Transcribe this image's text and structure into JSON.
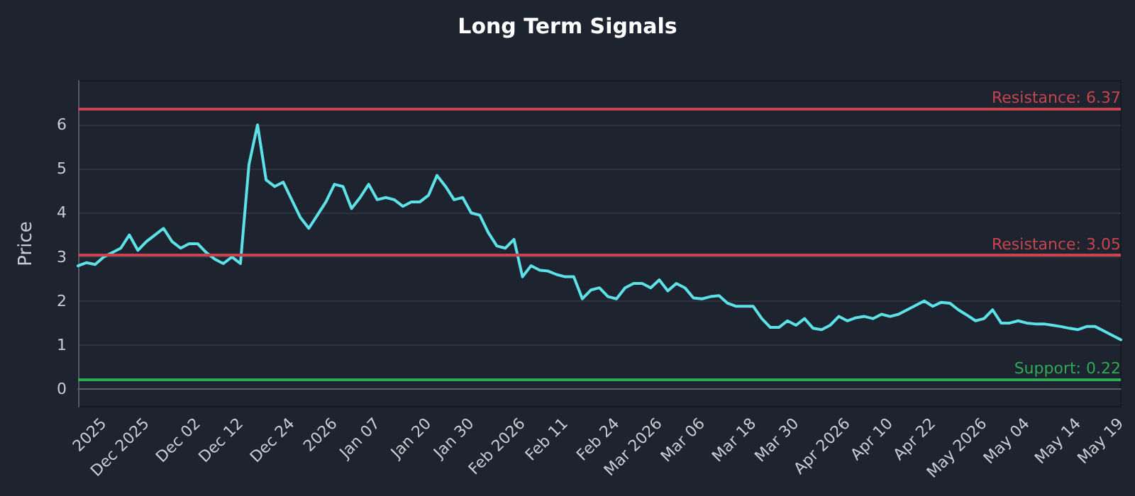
{
  "chart_data": {
    "type": "line",
    "title": "Long Term Signals",
    "ylabel": "Price",
    "categories": [
      null,
      null,
      null,
      "2025",
      null,
      null,
      null,
      null,
      "Dec 2025",
      null,
      null,
      null,
      null,
      null,
      "Dec 02",
      null,
      null,
      null,
      null,
      "Dec 12",
      null,
      null,
      null,
      null,
      null,
      "Dec 24",
      null,
      null,
      null,
      null,
      "2026",
      null,
      null,
      null,
      null,
      "Jan 07",
      null,
      null,
      null,
      null,
      null,
      "Jan 20",
      null,
      null,
      null,
      null,
      "Jan 30",
      null,
      null,
      null,
      null,
      null,
      "Feb 2026",
      null,
      null,
      null,
      null,
      "Feb 11",
      null,
      null,
      null,
      null,
      null,
      "Feb 24",
      null,
      null,
      null,
      null,
      "Mar 2026",
      null,
      null,
      null,
      null,
      "Mar 06",
      null,
      null,
      null,
      null,
      null,
      "Mar 18",
      null,
      null,
      null,
      null,
      "Mar 30",
      null,
      null,
      null,
      null,
      null,
      "Apr 2026",
      null,
      null,
      null,
      null,
      "Apr 10",
      null,
      null,
      null,
      null,
      "Apr 22",
      null,
      null,
      null,
      null,
      null,
      "May 2026",
      null,
      null,
      null,
      null,
      "May 04",
      null,
      null,
      null,
      null,
      null,
      "May 14",
      null,
      null,
      null,
      null,
      "May 19"
    ],
    "series": [
      {
        "color": "#5ce1e6",
        "values": [
          2.8,
          2.87,
          2.83,
          3.0,
          3.1,
          3.2,
          3.5,
          3.15,
          3.35,
          3.5,
          3.65,
          3.35,
          3.2,
          3.3,
          3.3,
          3.1,
          2.95,
          2.85,
          3.0,
          2.85,
          5.1,
          6.0,
          4.75,
          4.6,
          4.7,
          4.3,
          3.9,
          3.65,
          3.95,
          4.25,
          4.65,
          4.6,
          4.1,
          4.35,
          4.65,
          4.3,
          4.35,
          4.3,
          4.15,
          4.25,
          4.25,
          4.4,
          4.85,
          4.6,
          4.3,
          4.35,
          4.0,
          3.95,
          3.55,
          3.25,
          3.2,
          3.4,
          2.55,
          2.8,
          2.7,
          2.68,
          2.6,
          2.55,
          2.55,
          2.05,
          2.25,
          2.3,
          2.1,
          2.05,
          2.3,
          2.4,
          2.4,
          2.3,
          2.48,
          2.23,
          2.4,
          2.3,
          2.07,
          2.05,
          2.1,
          2.12,
          1.95,
          1.88,
          1.88,
          1.88,
          1.6,
          1.4,
          1.4,
          1.55,
          1.45,
          1.6,
          1.38,
          1.35,
          1.45,
          1.65,
          1.55,
          1.62,
          1.65,
          1.6,
          1.7,
          1.65,
          1.7,
          1.8,
          1.9,
          2.0,
          1.88,
          1.97,
          1.95,
          1.8,
          1.68,
          1.55,
          1.6,
          1.8,
          1.5,
          1.5,
          1.55,
          1.5,
          1.48,
          1.48,
          1.45,
          1.42,
          1.38,
          1.35,
          1.42,
          1.42,
          1.32,
          1.22,
          1.12
        ]
      }
    ],
    "ylim": [
      -0.4,
      7
    ],
    "yticks": [
      0,
      1,
      2,
      3,
      4,
      5,
      6
    ],
    "grid": "y",
    "marker": "none",
    "line_style": "solid",
    "ref_lines": [
      {
        "axis": "y",
        "value": 6.37,
        "label": "Resistance: 6.37",
        "color": "#c8444e"
      },
      {
        "axis": "y",
        "value": 3.05,
        "label": "Resistance: 3.05",
        "color": "#c8444e"
      },
      {
        "axis": "y",
        "value": 0.22,
        "label": "Support: 0.22",
        "color": "#2eaa55"
      }
    ]
  }
}
